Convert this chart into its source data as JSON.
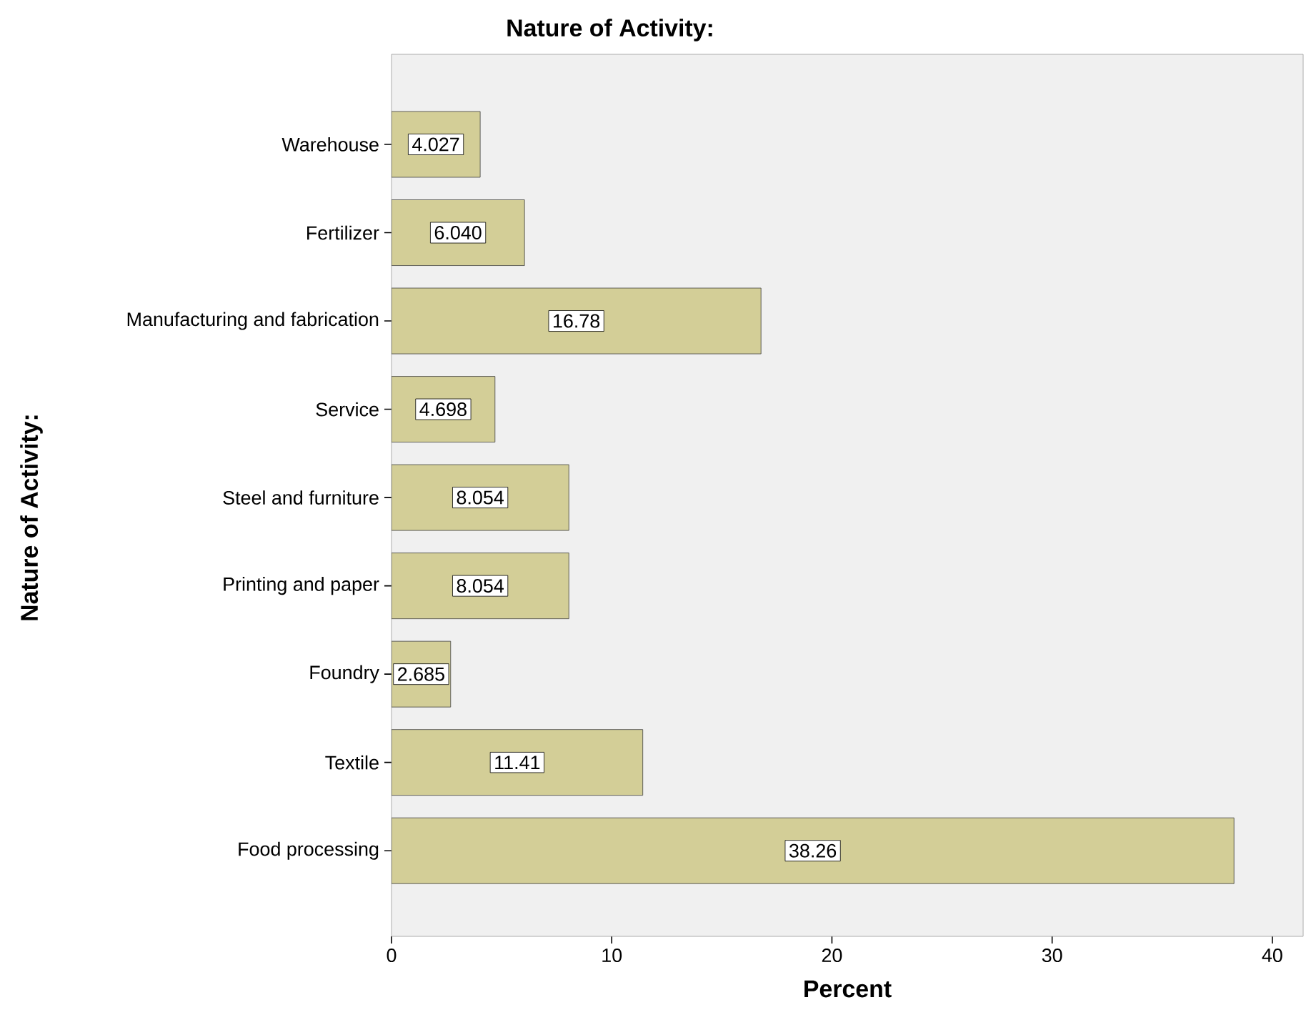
{
  "chart_data": {
    "type": "bar",
    "orientation": "horizontal",
    "title": "Nature of Activity:",
    "xlabel": "Percent",
    "ylabel": "Nature of Activity:",
    "categories": [
      "Warehouse",
      "Fertilizer",
      "Manufacturing and fabrication",
      "Service",
      "Steel and furniture",
      "Printing and paper",
      "Foundry",
      "Textile",
      "Food processing"
    ],
    "values": [
      4.027,
      6.04,
      16.78,
      4.698,
      8.054,
      8.054,
      2.685,
      11.41,
      38.26
    ],
    "value_labels": [
      "4.027",
      "6.040",
      "16.78",
      "4.698",
      "8.054",
      "8.054",
      "2.685",
      "11.41",
      "38.26"
    ],
    "color": "#d3ce97",
    "xlim": [
      0,
      41.4
    ],
    "xticks": [
      0,
      10,
      20,
      30,
      40
    ],
    "grid": false
  }
}
